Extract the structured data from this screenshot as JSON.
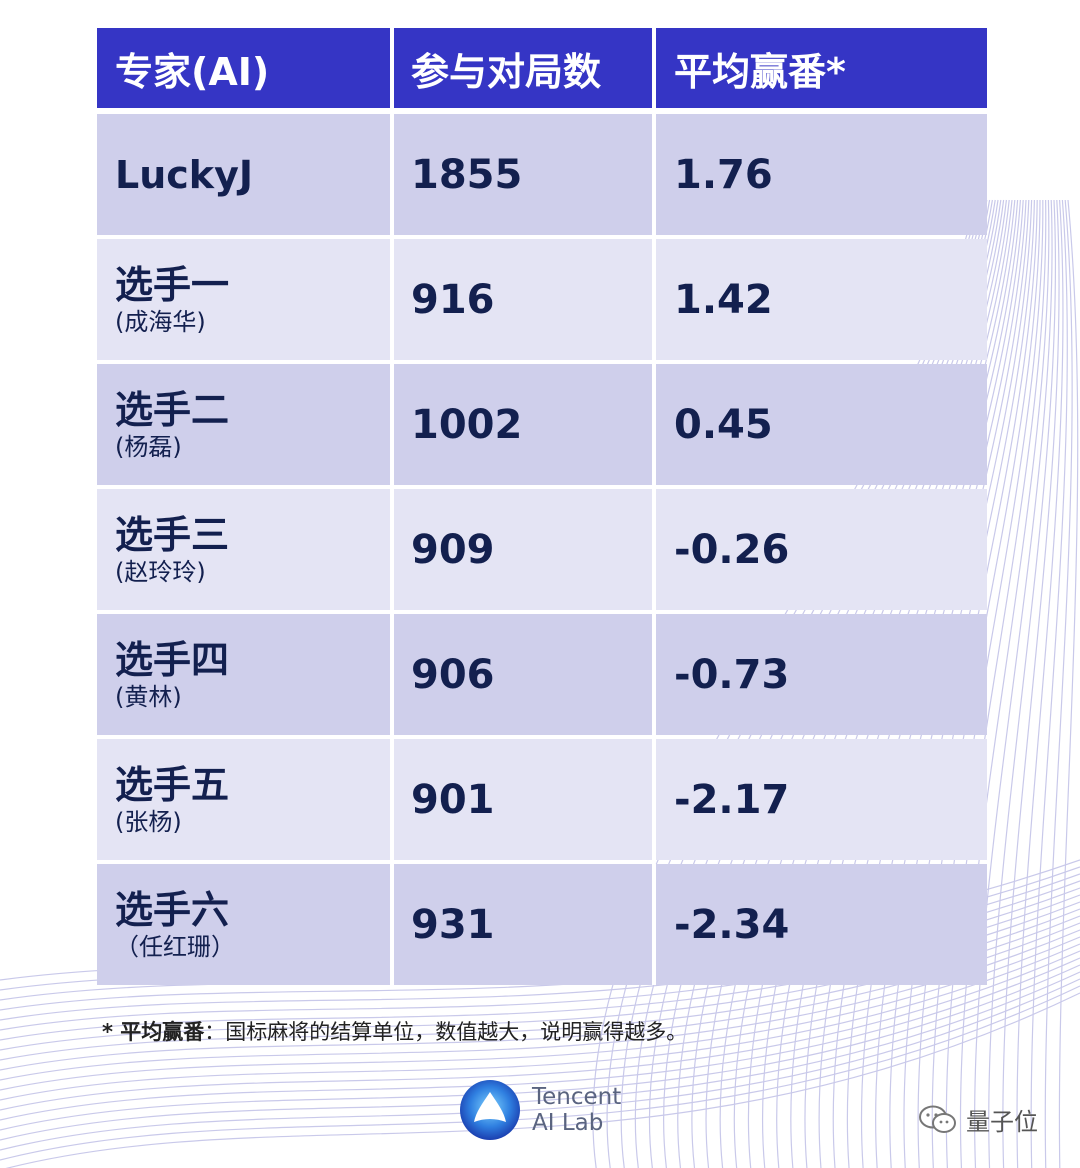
{
  "table": {
    "headers": [
      "专家(AI)",
      "参与对局数",
      "平均赢番*"
    ],
    "rows": [
      {
        "name": "LuckyJ",
        "sub": "",
        "games": "1855",
        "score": "1.76"
      },
      {
        "name": "选手一",
        "sub": "(成海华)",
        "games": "916",
        "score": "1.42"
      },
      {
        "name": "选手二",
        "sub": "(杨磊)",
        "games": "1002",
        "score": "0.45"
      },
      {
        "name": "选手三",
        "sub": "(赵玲玲)",
        "games": "909",
        "score": "-0.26"
      },
      {
        "name": "选手四",
        "sub": "(黄林)",
        "games": "906",
        "score": "-0.73"
      },
      {
        "name": "选手五",
        "sub": "(张杨)",
        "games": "901",
        "score": "-2.17"
      },
      {
        "name": "选手六",
        "sub": "（任红珊）",
        "games": "931",
        "score": "-2.34"
      }
    ]
  },
  "footnote": {
    "term": "* 平均赢番",
    "text": "：国标麻将的结算单位，数值越大，说明赢得越多。"
  },
  "logo": {
    "line1": "Tencent",
    "line2": "AI Lab",
    "icon": "tencent-ai-lab-logo"
  },
  "watermark": {
    "text": "量子位",
    "icon": "wechat-icon"
  },
  "colors": {
    "header_bg": "#3535c5",
    "row_odd": "#cfcfeb",
    "row_even": "#e4e4f4",
    "text": "#13204f"
  }
}
